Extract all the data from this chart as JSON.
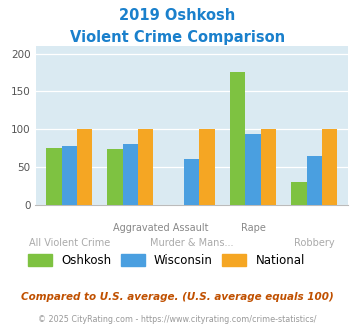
{
  "title_line1": "2019 Oshkosh",
  "title_line2": "Violent Crime Comparison",
  "oshkosh": [
    75,
    74,
    0,
    176,
    30
  ],
  "wisconsin": [
    78,
    81,
    60,
    93,
    64
  ],
  "national": [
    100,
    100,
    100,
    100,
    100
  ],
  "color_oshkosh": "#7ec241",
  "color_wisconsin": "#4a9fe0",
  "color_national": "#f5a623",
  "ylim": [
    0,
    210
  ],
  "yticks": [
    0,
    50,
    100,
    150,
    200
  ],
  "background_color": "#daeaf2",
  "title_color": "#1a80cc",
  "footer_text": "Compared to U.S. average. (U.S. average equals 100)",
  "footer_color": "#c05000",
  "footer2_text": "© 2025 CityRating.com - https://www.cityrating.com/crime-statistics/",
  "footer2_color": "#999999",
  "xlabel_bottom": [
    "All Violent Crime",
    "Murder & Mans...",
    "Robbery"
  ],
  "xlabel_top": [
    "Aggravated Assault",
    "Rape"
  ],
  "legend_labels": [
    "Oshkosh",
    "Wisconsin",
    "National"
  ]
}
